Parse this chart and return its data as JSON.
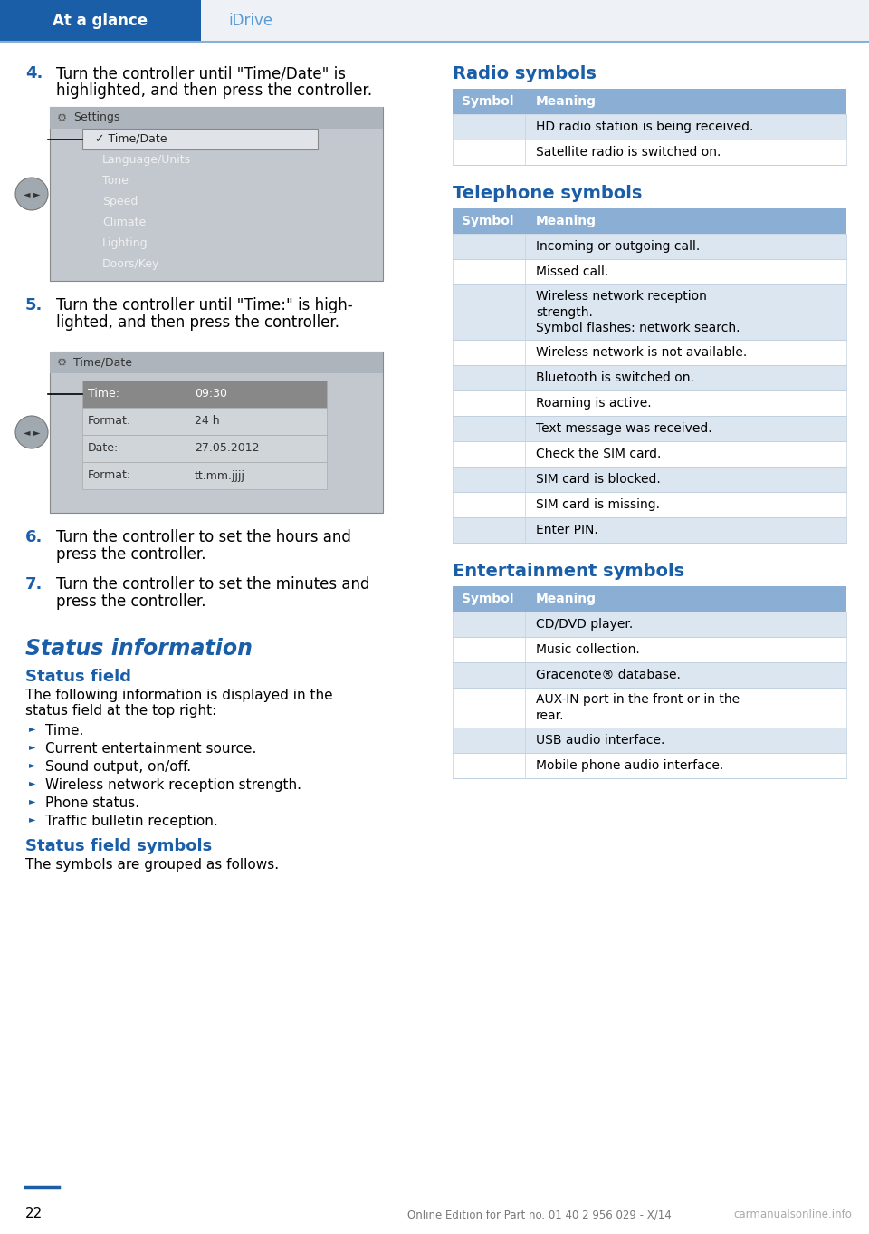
{
  "page_num": "22",
  "header_tab1": "At a glance",
  "header_tab2": "iDrive",
  "header_bg": "#1a5ea8",
  "header_text_white": "#ffffff",
  "header_tab2_color": "#5b9bd5",
  "header_line_color": "#8bafd4",
  "footer_text": "Online Edition for Part no. 01 40 2 956 029 - X/14",
  "footer_watermark": "carmanualsonline.info",
  "bg_color": "#ffffff",
  "black": "#000000",
  "blue": "#1a5ea8",
  "light_blue_table_header": "#8bafd4",
  "light_blue_table_row": "#dce6f1",
  "step4_num": "4.",
  "step4_line1": "Turn the controller until \"Time/Date\" is",
  "step4_line2": "highlighted, and then press the controller.",
  "screen1_title": "Settings",
  "screen1_items": [
    "Time/Date",
    "Language/Units",
    "Tone",
    "Speed",
    "Climate",
    "Lighting",
    "Doors/Key"
  ],
  "step5_num": "5.",
  "step5_line1": "Turn the controller until \"Time:\" is high-",
  "step5_line2": "lighted, and then press the controller.",
  "screen2_title": "Time/Date",
  "screen2_rows": [
    [
      "Time:",
      "09:30",
      true
    ],
    [
      "Format:",
      "24 h",
      false
    ],
    [
      "Date:",
      "27.05.2012",
      false
    ],
    [
      "Format:",
      "tt.mm.jjjj",
      false
    ]
  ],
  "step6_num": "6.",
  "step6_line1": "Turn the controller to set the hours and",
  "step6_line2": "press the controller.",
  "step7_num": "7.",
  "step7_line1": "Turn the controller to set the minutes and",
  "step7_line2": "press the controller.",
  "status_info_title": "Status information",
  "status_field_title": "Status field",
  "status_field_intro1": "The following information is displayed in the",
  "status_field_intro2": "status field at the top right:",
  "status_bullets": [
    "Time.",
    "Current entertainment source.",
    "Sound output, on/off.",
    "Wireless network reception strength.",
    "Phone status.",
    "Traffic bulletin reception."
  ],
  "status_symbols_title": "Status field symbols",
  "status_symbols_text": "The symbols are grouped as follows.",
  "radio_title": "Radio symbols",
  "radio_rows": [
    [
      "meaning_only",
      "HD radio station is being received."
    ],
    [
      "meaning_only",
      "Satellite radio is switched on."
    ]
  ],
  "telephone_title": "Telephone symbols",
  "telephone_rows": [
    [
      "meaning_only",
      "Incoming or outgoing call."
    ],
    [
      "meaning_only",
      "Missed call."
    ],
    [
      "meaning_only",
      "Wireless network reception\nstrength.\nSymbol flashes: network search."
    ],
    [
      "meaning_only",
      "Wireless network is not available."
    ],
    [
      "meaning_only",
      "Bluetooth is switched on."
    ],
    [
      "meaning_only",
      "Roaming is active."
    ],
    [
      "meaning_only",
      "Text message was received."
    ],
    [
      "meaning_only",
      "Check the SIM card."
    ],
    [
      "meaning_only",
      "SIM card is blocked."
    ],
    [
      "meaning_only",
      "SIM card is missing."
    ],
    [
      "meaning_only",
      "Enter PIN."
    ]
  ],
  "entertainment_title": "Entertainment symbols",
  "entertainment_rows": [
    [
      "meaning_only",
      "CD/DVD player."
    ],
    [
      "meaning_only",
      "Music collection."
    ],
    [
      "meaning_only",
      "Gracenote® database."
    ],
    [
      "meaning_only",
      "AUX-IN port in the front or in the\nrear."
    ],
    [
      "meaning_only",
      "USB audio interface."
    ],
    [
      "meaning_only",
      "Mobile phone audio interface."
    ]
  ]
}
